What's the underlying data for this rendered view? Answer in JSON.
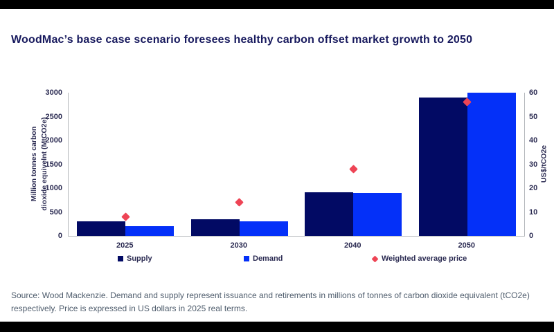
{
  "title": "WoodMac’s base case scenario foresees healthy carbon offset market growth to 2050",
  "source": {
    "line1": "Source: Wood Mackenzie. Demand and supply represent issuance and retirements in millions of tonnes of carbon dioxide equivalent (tCO2e)",
    "line2": "respectively. Price is expressed in US dollars in 2025 real terms."
  },
  "colors": {
    "supply": "#020a64",
    "demand": "#0430f8",
    "price": "#ee4455",
    "title_text": "#181a5e",
    "axis_text": "#2b2b52",
    "source_text": "#4e5c6c",
    "axis_line": "#b4b7bb",
    "background": "#ffffff",
    "letterbox": "#000000"
  },
  "chart_data": {
    "type": "bar",
    "categories": [
      "2025",
      "2030",
      "2040",
      "2050"
    ],
    "series": [
      {
        "name": "Supply",
        "values": [
          300,
          350,
          910,
          2900
        ]
      },
      {
        "name": "Demand",
        "values": [
          200,
          300,
          900,
          3000
        ]
      }
    ],
    "price_series": {
      "name": "Weighted average price",
      "values": [
        8,
        14,
        28,
        56
      ]
    },
    "left_axis": {
      "label": "Million tonnes carbon dioxide equivelnt (MtCO2e)",
      "label_lines": [
        "Million tonnes carbon",
        "dioxide equivelnt (MtCO2e)"
      ],
      "ticks": [
        0,
        500,
        1000,
        1500,
        2000,
        2500,
        3000
      ],
      "max": 3000
    },
    "right_axis": {
      "label": "US$/tCO2e",
      "ticks": [
        0,
        10,
        20,
        30,
        40,
        50,
        60
      ],
      "max": 60
    },
    "legend": [
      "Supply",
      "Demand",
      "Weighted average price"
    ],
    "grid": false,
    "legend_position": "bottom"
  }
}
